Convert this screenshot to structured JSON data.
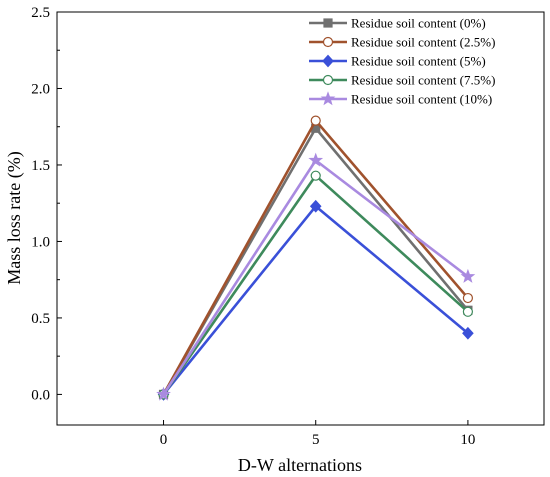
{
  "chart_data": {
    "type": "line",
    "title": "",
    "xlabel": "D-W alternations",
    "ylabel": "Mass loss rate (%)",
    "x": [
      0,
      5,
      10
    ],
    "xlim": [
      -3.5,
      12.5
    ],
    "ylim": [
      -0.2,
      2.5
    ],
    "xticks": [
      "0",
      "5",
      "10"
    ],
    "yticks": [
      "0.0",
      "0.5",
      "1.0",
      "1.5",
      "2.0",
      "2.5"
    ],
    "grid": false,
    "legend_position": "top-right",
    "series": [
      {
        "name": "Residue soil content (0%)",
        "values": [
          0.0,
          1.74,
          0.55
        ],
        "color": "#707070",
        "marker": "square",
        "marker_fill": "filled"
      },
      {
        "name": "Residue soil content (2.5%)",
        "values": [
          0.0,
          1.79,
          0.63
        ],
        "color": "#a0522d",
        "marker": "circle",
        "marker_fill": "open"
      },
      {
        "name": "Residue soil content (5%)",
        "values": [
          0.0,
          1.23,
          0.4
        ],
        "color": "#3a50d8",
        "marker": "diamond",
        "marker_fill": "filled"
      },
      {
        "name": "Residue soil content (7.5%)",
        "values": [
          0.0,
          1.43,
          0.54
        ],
        "color": "#3e8a5c",
        "marker": "circle",
        "marker_fill": "open"
      },
      {
        "name": "Residue soil content (10%)",
        "values": [
          0.0,
          1.53,
          0.77
        ],
        "color": "#a98ae0",
        "marker": "star",
        "marker_fill": "filled"
      }
    ]
  }
}
